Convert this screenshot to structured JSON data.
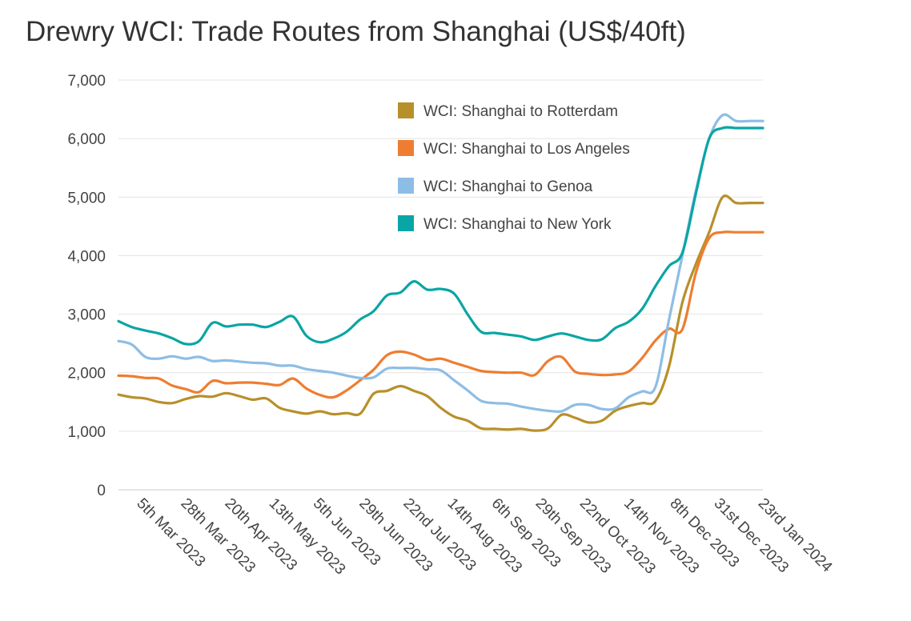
{
  "chart_data": {
    "type": "line",
    "title": "Drewry WCI: Trade Routes from Shanghai (US$/40ft)",
    "xlabel": "",
    "ylabel": "",
    "ylim": [
      0,
      7000
    ],
    "yticks": [
      "0",
      "1,000",
      "2,000",
      "3,000",
      "4,000",
      "5,000",
      "6,000",
      "7,000"
    ],
    "grid": "horizontal",
    "legend_position": "top-right",
    "x_tick_labels": [
      "5th Mar 2023",
      "28th Mar 2023",
      "20th Apr 2023",
      "13th May 2023",
      "5th Jun 2023",
      "29th Jun 2023",
      "22nd Jul 2023",
      "14th Aug 2023",
      "6th Sep 2023",
      "29th Sep 2023",
      "22nd Oct 2023",
      "14th Nov 2023",
      "8th Dec 2023",
      "31st Dec 2023",
      "23rd Jan 2024"
    ],
    "x": [
      "2023-02-23",
      "2023-03-02",
      "2023-03-09",
      "2023-03-16",
      "2023-03-23",
      "2023-03-30",
      "2023-04-06",
      "2023-04-13",
      "2023-04-20",
      "2023-04-27",
      "2023-05-04",
      "2023-05-11",
      "2023-05-18",
      "2023-05-25",
      "2023-06-01",
      "2023-06-08",
      "2023-06-15",
      "2023-06-22",
      "2023-06-29",
      "2023-07-06",
      "2023-07-13",
      "2023-07-20",
      "2023-07-27",
      "2023-08-03",
      "2023-08-10",
      "2023-08-17",
      "2023-08-24",
      "2023-08-31",
      "2023-09-07",
      "2023-09-14",
      "2023-09-21",
      "2023-09-28",
      "2023-10-05",
      "2023-10-12",
      "2023-10-19",
      "2023-10-26",
      "2023-11-02",
      "2023-11-09",
      "2023-11-16",
      "2023-11-23",
      "2023-11-30",
      "2023-12-07",
      "2023-12-14",
      "2023-12-21",
      "2023-12-28",
      "2024-01-04",
      "2024-01-11",
      "2024-01-18",
      "2024-01-25"
    ],
    "series": [
      {
        "name": "WCI: Shanghai to Rotterdam",
        "color": "#b8902a",
        "values": [
          1625,
          1580,
          1560,
          1500,
          1480,
          1550,
          1600,
          1590,
          1650,
          1600,
          1540,
          1560,
          1400,
          1340,
          1300,
          1340,
          1290,
          1310,
          1300,
          1640,
          1690,
          1770,
          1690,
          1600,
          1400,
          1250,
          1180,
          1050,
          1040,
          1030,
          1040,
          1010,
          1050,
          1280,
          1230,
          1150,
          1180,
          1350,
          1430,
          1480,
          1520,
          2100,
          3200,
          3850,
          4400,
          5000,
          4900,
          4900,
          4900
        ]
      },
      {
        "name": "WCI: Shanghai to Los Angeles",
        "color": "#ee7d31",
        "values": [
          1950,
          1940,
          1910,
          1900,
          1780,
          1720,
          1670,
          1860,
          1820,
          1830,
          1830,
          1810,
          1790,
          1900,
          1730,
          1620,
          1580,
          1700,
          1870,
          2050,
          2300,
          2360,
          2310,
          2220,
          2240,
          2170,
          2100,
          2030,
          2010,
          2000,
          2000,
          1960,
          2200,
          2270,
          2020,
          1980,
          1960,
          1970,
          2020,
          2250,
          2550,
          2750,
          2740,
          3700,
          4300,
          4400,
          4400,
          4400,
          4400
        ]
      },
      {
        "name": "WCI: Shanghai to Genoa",
        "color": "#8dbde5",
        "values": [
          2540,
          2480,
          2270,
          2240,
          2280,
          2240,
          2270,
          2200,
          2210,
          2190,
          2170,
          2160,
          2120,
          2120,
          2060,
          2030,
          2000,
          1950,
          1910,
          1920,
          2070,
          2080,
          2080,
          2060,
          2040,
          1870,
          1700,
          1520,
          1480,
          1470,
          1420,
          1380,
          1350,
          1340,
          1450,
          1450,
          1380,
          1390,
          1580,
          1680,
          1760,
          2900,
          4000,
          5100,
          6000,
          6400,
          6300,
          6300,
          6300
        ]
      },
      {
        "name": "WCI: Shanghai to New York",
        "color": "#0aa5a5",
        "values": [
          2880,
          2780,
          2720,
          2670,
          2590,
          2490,
          2540,
          2850,
          2790,
          2820,
          2820,
          2780,
          2870,
          2960,
          2630,
          2520,
          2580,
          2700,
          2910,
          3050,
          3320,
          3370,
          3560,
          3420,
          3430,
          3350,
          3000,
          2700,
          2680,
          2650,
          2620,
          2560,
          2620,
          2670,
          2620,
          2560,
          2570,
          2760,
          2870,
          3090,
          3480,
          3820,
          4050,
          5050,
          6000,
          6180,
          6180,
          6180,
          6180
        ]
      }
    ]
  }
}
